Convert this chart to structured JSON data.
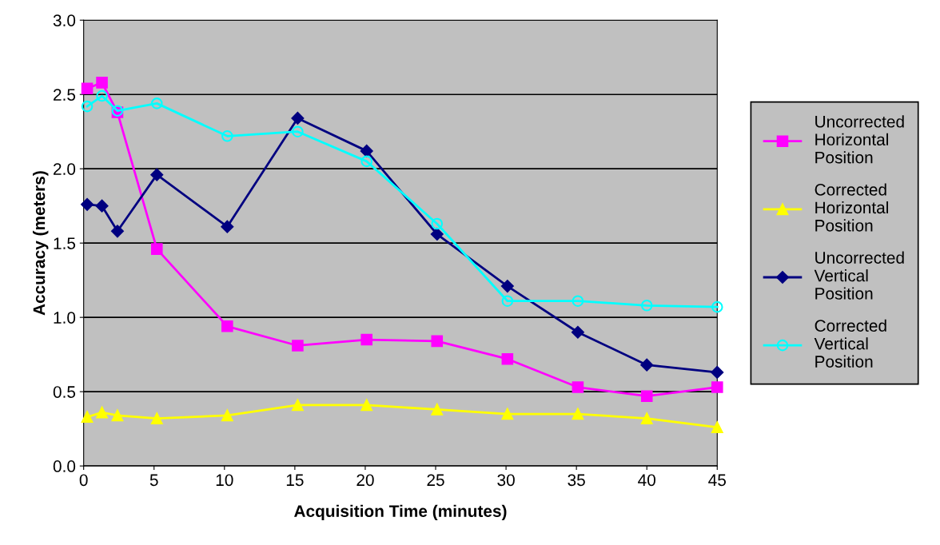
{
  "chart_data": {
    "type": "line",
    "xlabel": "Acquisition Time (minutes)",
    "ylabel": "Accuracy (meters)",
    "x": [
      0.25,
      1.3,
      2.4,
      5.2,
      10.2,
      15.2,
      20.1,
      25.1,
      30.1,
      35.1,
      40,
      45
    ],
    "series": [
      {
        "name": "Uncorrected Horizontal Position",
        "color": "#ff00ff",
        "marker": "square",
        "values": [
          2.54,
          2.58,
          2.38,
          1.46,
          0.94,
          0.81,
          0.85,
          0.84,
          0.72,
          0.53,
          0.47,
          0.53
        ]
      },
      {
        "name": "Corrected Horizontal Position",
        "color": "#ffff00",
        "marker": "triangle",
        "values": [
          0.33,
          0.36,
          0.34,
          0.32,
          0.34,
          0.41,
          0.41,
          0.38,
          0.35,
          0.35,
          0.32,
          0.26
        ]
      },
      {
        "name": "Uncorrected Vertical Position",
        "color": "#000080",
        "marker": "diamond",
        "values": [
          1.76,
          1.75,
          1.58,
          1.96,
          1.61,
          2.34,
          2.12,
          1.56,
          1.21,
          0.9,
          0.68,
          0.63
        ]
      },
      {
        "name": "Corrected Vertical Position",
        "color": "#00ffff",
        "marker": "circle",
        "values": [
          2.42,
          2.49,
          2.39,
          2.44,
          2.22,
          2.25,
          2.05,
          1.63,
          1.11,
          1.11,
          1.08,
          1.07
        ]
      }
    ],
    "xlim": [
      0,
      45
    ],
    "xticks": [
      0,
      5,
      10,
      15,
      20,
      25,
      30,
      35,
      40,
      45
    ],
    "ylim": [
      0,
      3
    ],
    "yticks": [
      {
        "value": 0,
        "label": "0.0"
      },
      {
        "value": 0.5,
        "label": "0.5"
      },
      {
        "value": 1,
        "label": "1.0"
      },
      {
        "value": 1.5,
        "label": "1.5"
      },
      {
        "value": 2,
        "label": "2.0"
      },
      {
        "value": 2.5,
        "label": "2.5"
      },
      {
        "value": 3,
        "label": "3.0"
      }
    ],
    "grid": "y",
    "legend": "right",
    "line_style": "solid"
  }
}
